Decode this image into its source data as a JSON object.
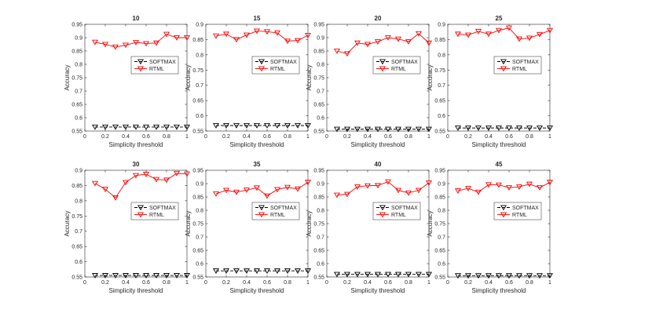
{
  "figure": {
    "colors": {
      "softmax": "#000000",
      "rtml": "#ff0000",
      "axis": "#262626",
      "background": "#ffffff"
    }
  },
  "chart_data": [
    {
      "type": "line",
      "title": "10",
      "xlabel": "Simplicity threshold",
      "ylabel": "Accuracy",
      "xlim": [
        0,
        1
      ],
      "ylim": [
        0.55,
        0.95
      ],
      "xticks": [
        0,
        0.2,
        0.4,
        0.6,
        0.8,
        1
      ],
      "xtick_labels": [
        "0",
        "0.2",
        "0.4",
        "0.6",
        "0.8",
        "1"
      ],
      "yticks": [
        0.55,
        0.6,
        0.65,
        0.7,
        0.75,
        0.8,
        0.85,
        0.9,
        0.95
      ],
      "ytick_labels": [
        "0.55",
        "0.6",
        "0.65",
        "0.7",
        "0.75",
        "0.8",
        "0.85",
        "0.9",
        "0.95"
      ],
      "legend_position": "center-right",
      "x": [
        0.1,
        0.2,
        0.3,
        0.4,
        0.5,
        0.6,
        0.7,
        0.8,
        0.9,
        1.0
      ],
      "series": [
        {
          "name": "SOFTMAX",
          "values": [
            0.565,
            0.565,
            0.565,
            0.565,
            0.565,
            0.565,
            0.565,
            0.565,
            0.565,
            0.565
          ]
        },
        {
          "name": "RTML",
          "values": [
            0.883,
            0.875,
            0.865,
            0.872,
            0.882,
            0.878,
            0.88,
            0.913,
            0.9,
            0.9
          ]
        }
      ]
    },
    {
      "type": "line",
      "title": "15",
      "xlabel": "Simplicity threshold",
      "ylabel": "Accuracy",
      "xlim": [
        0,
        1
      ],
      "ylim": [
        0.55,
        0.9
      ],
      "xticks": [
        0,
        0.2,
        0.4,
        0.6,
        0.8,
        1
      ],
      "xtick_labels": [
        "0",
        "0.2",
        "0.4",
        "0.6",
        "0.8",
        "1"
      ],
      "yticks": [
        0.55,
        0.6,
        0.65,
        0.7,
        0.75,
        0.8,
        0.85,
        0.9
      ],
      "ytick_labels": [
        "0.55",
        "0.6",
        "0.65",
        "0.7",
        "0.75",
        "0.8",
        "0.85",
        "0.9"
      ],
      "legend_position": "center-right",
      "x": [
        0.1,
        0.2,
        0.3,
        0.4,
        0.5,
        0.6,
        0.7,
        0.8,
        0.9,
        1.0
      ],
      "series": [
        {
          "name": "SOFTMAX",
          "values": [
            0.568,
            0.568,
            0.568,
            0.568,
            0.568,
            0.568,
            0.568,
            0.568,
            0.568,
            0.568
          ]
        },
        {
          "name": "RTML",
          "values": [
            0.862,
            0.868,
            0.85,
            0.865,
            0.878,
            0.876,
            0.872,
            0.845,
            0.847,
            0.864
          ]
        }
      ]
    },
    {
      "type": "line",
      "title": "20",
      "xlabel": "Simplicity threshold",
      "ylabel": "Accuracy",
      "xlim": [
        0,
        1
      ],
      "ylim": [
        0.55,
        0.95
      ],
      "xticks": [
        0,
        0.2,
        0.4,
        0.6,
        0.8,
        1
      ],
      "xtick_labels": [
        "0",
        "0.2",
        "0.4",
        "0.6",
        "0.8",
        "1"
      ],
      "yticks": [
        0.55,
        0.6,
        0.65,
        0.7,
        0.75,
        0.8,
        0.85,
        0.9,
        0.95
      ],
      "ytick_labels": [
        "0.55",
        "0.6",
        "0.65",
        "0.7",
        "0.75",
        "0.8",
        "0.85",
        "0.9",
        "0.95"
      ],
      "legend_position": "center-right",
      "x": [
        0.1,
        0.2,
        0.3,
        0.4,
        0.5,
        0.6,
        0.7,
        0.8,
        0.9,
        1.0
      ],
      "series": [
        {
          "name": "SOFTMAX",
          "values": [
            0.557,
            0.557,
            0.557,
            0.557,
            0.557,
            0.557,
            0.557,
            0.557,
            0.557,
            0.557
          ]
        },
        {
          "name": "RTML",
          "values": [
            0.85,
            0.84,
            0.88,
            0.875,
            0.885,
            0.9,
            0.895,
            0.885,
            0.915,
            0.88
          ]
        }
      ]
    },
    {
      "type": "line",
      "title": "25",
      "xlabel": "Simplicity threshold",
      "ylabel": "Accuracy",
      "xlim": [
        0,
        1
      ],
      "ylim": [
        0.55,
        0.9
      ],
      "xticks": [
        0,
        0.2,
        0.4,
        0.6,
        0.8,
        1
      ],
      "xtick_labels": [
        "0",
        "0.2",
        "0.4",
        "0.6",
        "0.8",
        "1"
      ],
      "yticks": [
        0.55,
        0.6,
        0.65,
        0.7,
        0.75,
        0.8,
        0.85,
        0.9
      ],
      "ytick_labels": [
        "0.55",
        "0.6",
        "0.65",
        "0.7",
        "0.75",
        "0.8",
        "0.85",
        "0.9"
      ],
      "legend_position": "center-right",
      "x": [
        0.1,
        0.2,
        0.3,
        0.4,
        0.5,
        0.6,
        0.7,
        0.8,
        0.9,
        1.0
      ],
      "series": [
        {
          "name": "SOFTMAX",
          "values": [
            0.56,
            0.56,
            0.56,
            0.56,
            0.56,
            0.56,
            0.56,
            0.56,
            0.56,
            0.56
          ]
        },
        {
          "name": "RTML",
          "values": [
            0.868,
            0.865,
            0.877,
            0.868,
            0.88,
            0.888,
            0.852,
            0.855,
            0.867,
            0.88
          ]
        }
      ]
    },
    {
      "type": "line",
      "title": "30",
      "xlabel": "Simplicity threshold",
      "ylabel": "Accuracy",
      "xlim": [
        0,
        1
      ],
      "ylim": [
        0.55,
        0.9
      ],
      "xticks": [
        0,
        0.2,
        0.4,
        0.6,
        0.8,
        1
      ],
      "xtick_labels": [
        "0",
        "0.2",
        "0.4",
        "0.6",
        "0.8",
        "1"
      ],
      "yticks": [
        0.55,
        0.6,
        0.65,
        0.7,
        0.75,
        0.8,
        0.85,
        0.9
      ],
      "ytick_labels": [
        "0.55",
        "0.6",
        "0.65",
        "0.7",
        "0.75",
        "0.8",
        "0.85",
        "0.9"
      ],
      "legend_position": "center-right",
      "x": [
        0.1,
        0.2,
        0.3,
        0.4,
        0.5,
        0.6,
        0.7,
        0.8,
        0.9,
        1.0
      ],
      "series": [
        {
          "name": "SOFTMAX",
          "values": [
            0.555,
            0.555,
            0.555,
            0.555,
            0.555,
            0.555,
            0.555,
            0.555,
            0.555,
            0.555
          ]
        },
        {
          "name": "RTML",
          "values": [
            0.857,
            0.838,
            0.81,
            0.86,
            0.883,
            0.887,
            0.87,
            0.868,
            0.89,
            0.888
          ]
        }
      ]
    },
    {
      "type": "line",
      "title": "35",
      "xlabel": "Simplicity threshold",
      "ylabel": "Accuracy",
      "xlim": [
        0,
        1
      ],
      "ylim": [
        0.55,
        0.95
      ],
      "xticks": [
        0,
        0.2,
        0.4,
        0.6,
        0.8,
        1
      ],
      "xtick_labels": [
        "0",
        "0.2",
        "0.4",
        "0.6",
        "0.8",
        "1"
      ],
      "yticks": [
        0.55,
        0.6,
        0.65,
        0.7,
        0.75,
        0.8,
        0.85,
        0.9,
        0.95
      ],
      "ytick_labels": [
        "0.55",
        "0.6",
        "0.65",
        "0.7",
        "0.75",
        "0.8",
        "0.85",
        "0.9",
        "0.95"
      ],
      "legend_position": "center-right",
      "x": [
        0.1,
        0.2,
        0.3,
        0.4,
        0.5,
        0.6,
        0.7,
        0.8,
        0.9,
        1.0
      ],
      "series": [
        {
          "name": "SOFTMAX",
          "values": [
            0.573,
            0.573,
            0.573,
            0.573,
            0.573,
            0.573,
            0.573,
            0.573,
            0.573,
            0.573
          ]
        },
        {
          "name": "RTML",
          "values": [
            0.862,
            0.875,
            0.868,
            0.876,
            0.884,
            0.854,
            0.878,
            0.886,
            0.88,
            0.905
          ]
        }
      ]
    },
    {
      "type": "line",
      "title": "40",
      "xlabel": "Simplicity threshold",
      "ylabel": "Accuracy",
      "xlim": [
        0,
        1
      ],
      "ylim": [
        0.55,
        0.95
      ],
      "xticks": [
        0,
        0.2,
        0.4,
        0.6,
        0.8,
        1
      ],
      "xtick_labels": [
        "0",
        "0.2",
        "0.4",
        "0.6",
        "0.8",
        "1"
      ],
      "yticks": [
        0.55,
        0.6,
        0.65,
        0.7,
        0.75,
        0.8,
        0.85,
        0.9,
        0.95
      ],
      "ytick_labels": [
        "0.55",
        "0.6",
        "0.65",
        "0.7",
        "0.75",
        "0.8",
        "0.85",
        "0.9",
        "0.95"
      ],
      "legend_position": "center-right",
      "x": [
        0.1,
        0.2,
        0.3,
        0.4,
        0.5,
        0.6,
        0.7,
        0.8,
        0.9,
        1.0
      ],
      "series": [
        {
          "name": "SOFTMAX",
          "values": [
            0.56,
            0.56,
            0.56,
            0.56,
            0.56,
            0.56,
            0.56,
            0.56,
            0.56,
            0.56
          ]
        },
        {
          "name": "RTML",
          "values": [
            0.857,
            0.86,
            0.888,
            0.892,
            0.893,
            0.907,
            0.875,
            0.865,
            0.875,
            0.903
          ]
        }
      ]
    },
    {
      "type": "line",
      "title": "45",
      "xlabel": "Simplicity threshold",
      "ylabel": "Accuracy",
      "xlim": [
        0,
        1
      ],
      "ylim": [
        0.55,
        0.95
      ],
      "xticks": [
        0,
        0.2,
        0.4,
        0.6,
        0.8,
        1
      ],
      "xtick_labels": [
        "0",
        "0.2",
        "0.4",
        "0.6",
        "0.8",
        "1"
      ],
      "yticks": [
        0.55,
        0.6,
        0.65,
        0.7,
        0.75,
        0.8,
        0.85,
        0.9,
        0.95
      ],
      "ytick_labels": [
        "0.55",
        "0.6",
        "0.65",
        "0.7",
        "0.75",
        "0.8",
        "0.85",
        "0.9",
        "0.95"
      ],
      "legend_position": "center-right",
      "x": [
        0.1,
        0.2,
        0.3,
        0.4,
        0.5,
        0.6,
        0.7,
        0.8,
        0.9,
        1.0
      ],
      "series": [
        {
          "name": "SOFTMAX",
          "values": [
            0.555,
            0.555,
            0.555,
            0.555,
            0.555,
            0.555,
            0.555,
            0.555,
            0.555,
            0.555
          ]
        },
        {
          "name": "RTML",
          "values": [
            0.873,
            0.882,
            0.868,
            0.896,
            0.895,
            0.885,
            0.888,
            0.898,
            0.885,
            0.905
          ]
        }
      ]
    }
  ]
}
